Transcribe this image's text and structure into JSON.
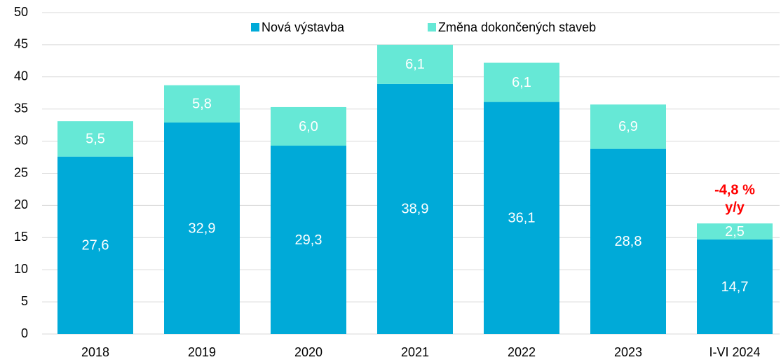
{
  "chart_data": {
    "type": "stacked_bar",
    "categories": [
      "2018",
      "2019",
      "2020",
      "2021",
      "2022",
      "2023",
      "I-VI 2024"
    ],
    "series": [
      {
        "name": "Nová výstavba",
        "color": "#00aad8",
        "values": [
          27.6,
          32.9,
          29.3,
          38.9,
          36.1,
          28.8,
          14.7
        ],
        "value_labels": [
          "27,6",
          "32,9",
          "29,3",
          "38,9",
          "36,1",
          "28,8",
          "14,7"
        ]
      },
      {
        "name": "Změna dokončených staveb",
        "color": "#66e8d6",
        "values": [
          5.5,
          5.8,
          6.0,
          6.1,
          6.1,
          6.9,
          2.5
        ],
        "value_labels": [
          "5,5",
          "5,8",
          "6,0",
          "6,1",
          "6,1",
          "6,9",
          "2,5"
        ]
      }
    ],
    "annotations": [
      "-4,8 %",
      "y/y"
    ],
    "annotation_color": "#ff0000",
    "ylim": [
      0,
      50
    ],
    "yticks": [
      0,
      5,
      10,
      15,
      20,
      25,
      30,
      35,
      40,
      45,
      50
    ],
    "grid": true,
    "legend": "top"
  }
}
